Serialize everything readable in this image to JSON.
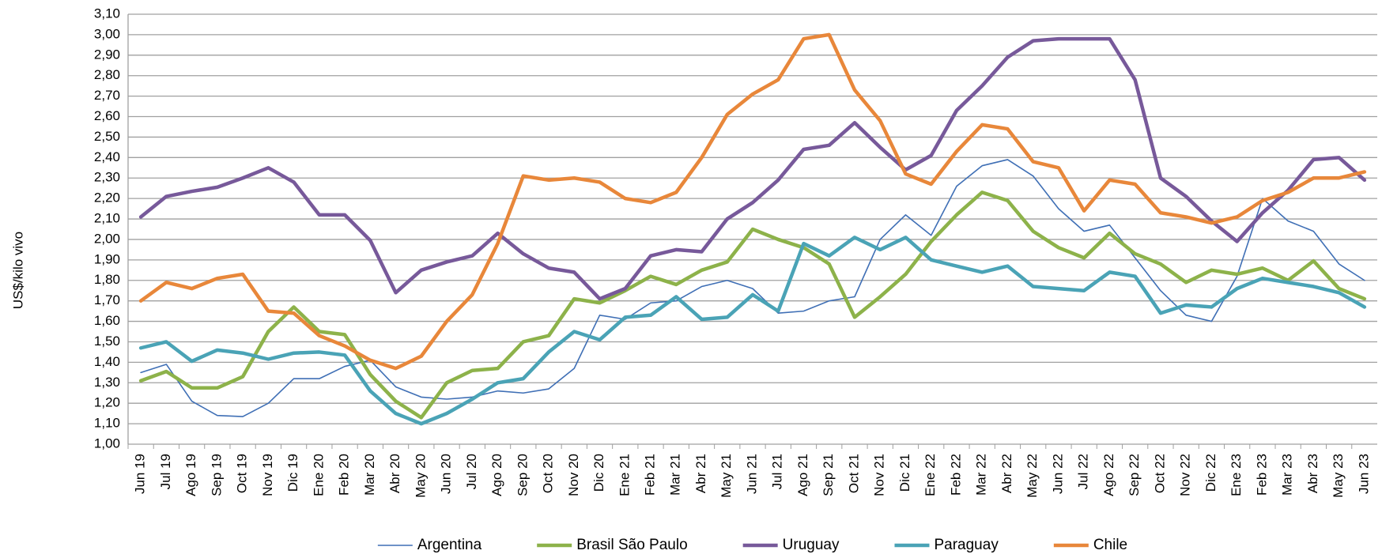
{
  "chart_data": {
    "type": "line",
    "y_label": "US$/kilo vivo",
    "categories": [
      "Jun 19",
      "Jul 19",
      "Ago 19",
      "Sep 19",
      "Oct 19",
      "Nov 19",
      "Dic 19",
      "Ene 20",
      "Feb 20",
      "Mar 20",
      "Abr 20",
      "May 20",
      "Jun 20",
      "Jul 20",
      "Ago 20",
      "Sep 20",
      "Oct 20",
      "Nov 20",
      "Dic 20",
      "Ene 21",
      "Feb 21",
      "Mar 21",
      "Abr 21",
      "May 21",
      "Jun 21",
      "Jul 21",
      "Ago 21",
      "Sep 21",
      "Oct 21",
      "Nov 21",
      "Dic 21",
      "Ene 22",
      "Feb 22",
      "Mar 22",
      "Abr 22",
      "May 22",
      "Jun 22",
      "Jul 22",
      "Ago 22",
      "Sep 22",
      "Oct 22",
      "Nov 22",
      "Dic 22",
      "Ene 23",
      "Feb 23",
      "Mar 23",
      "Abr 23",
      "May 23",
      "Jun 23"
    ],
    "series": [
      {
        "name": "Argentina",
        "color": "#3f6fb5",
        "line_width": 1.6,
        "values": [
          1.35,
          1.39,
          1.21,
          1.14,
          1.135,
          1.2,
          1.32,
          1.32,
          1.38,
          1.41,
          1.28,
          1.23,
          1.22,
          1.23,
          1.26,
          1.25,
          1.27,
          1.37,
          1.63,
          1.61,
          1.69,
          1.7,
          1.77,
          1.8,
          1.76,
          1.64,
          1.65,
          1.7,
          1.72,
          2.0,
          2.12,
          2.02,
          2.26,
          2.36,
          2.39,
          2.31,
          2.15,
          2.04,
          2.07,
          1.91,
          1.75,
          1.63,
          1.6,
          1.82,
          2.2,
          2.09,
          2.04,
          1.88,
          1.8
        ]
      },
      {
        "name": "Brasil São Paulo",
        "color": "#8db24a",
        "line_width": 4.5,
        "values": [
          1.31,
          1.355,
          1.275,
          1.275,
          1.33,
          1.55,
          1.67,
          1.55,
          1.535,
          1.34,
          1.21,
          1.13,
          1.3,
          1.36,
          1.37,
          1.5,
          1.53,
          1.71,
          1.69,
          1.75,
          1.82,
          1.78,
          1.85,
          1.89,
          2.05,
          2.0,
          1.96,
          1.88,
          1.62,
          1.72,
          1.83,
          1.99,
          2.12,
          2.23,
          2.19,
          2.04,
          1.96,
          1.91,
          2.03,
          1.93,
          1.88,
          1.79,
          1.85,
          1.83,
          1.86,
          1.8,
          1.895,
          1.76,
          1.71
        ]
      },
      {
        "name": "Uruguay",
        "color": "#77599a",
        "line_width": 4.5,
        "values": [
          2.11,
          2.21,
          2.235,
          2.255,
          2.3,
          2.35,
          2.28,
          2.12,
          2.12,
          1.995,
          1.74,
          1.85,
          1.89,
          1.92,
          2.03,
          1.93,
          1.86,
          1.84,
          1.71,
          1.76,
          1.92,
          1.95,
          1.94,
          2.1,
          2.18,
          2.29,
          2.44,
          2.46,
          2.57,
          2.45,
          2.34,
          2.41,
          2.63,
          2.75,
          2.89,
          2.97,
          2.98,
          2.98,
          2.98,
          2.78,
          2.3,
          2.21,
          2.09,
          1.99,
          2.13,
          2.24,
          2.39,
          2.4,
          2.29
        ]
      },
      {
        "name": "Paraguay",
        "color": "#4aa3b6",
        "line_width": 4.5,
        "values": [
          1.47,
          1.5,
          1.405,
          1.46,
          1.445,
          1.415,
          1.445,
          1.45,
          1.435,
          1.26,
          1.15,
          1.1,
          1.15,
          1.22,
          1.3,
          1.32,
          1.45,
          1.55,
          1.51,
          1.62,
          1.63,
          1.72,
          1.61,
          1.62,
          1.73,
          1.65,
          1.98,
          1.92,
          2.01,
          1.95,
          2.01,
          1.9,
          1.87,
          1.84,
          1.87,
          1.77,
          1.76,
          1.75,
          1.84,
          1.82,
          1.64,
          1.68,
          1.67,
          1.76,
          1.81,
          1.79,
          1.77,
          1.74,
          1.67
        ]
      },
      {
        "name": "Chile",
        "color": "#e8873a",
        "line_width": 4.5,
        "values": [
          1.7,
          1.79,
          1.76,
          1.81,
          1.83,
          1.65,
          1.64,
          1.53,
          1.48,
          1.41,
          1.37,
          1.43,
          1.6,
          1.73,
          1.98,
          2.31,
          2.29,
          2.3,
          2.28,
          2.2,
          2.18,
          2.23,
          2.4,
          2.61,
          2.71,
          2.78,
          2.98,
          3.0,
          2.73,
          2.58,
          2.32,
          2.27,
          2.43,
          2.56,
          2.54,
          2.38,
          2.35,
          2.14,
          2.29,
          2.27,
          2.13,
          2.11,
          2.08,
          2.11,
          2.19,
          2.23,
          2.3,
          2.3,
          2.33
        ]
      }
    ],
    "ylim": [
      1.0,
      3.1
    ],
    "yticks": [
      {
        "value": 1.0,
        "label": "1,00"
      },
      {
        "value": 1.1,
        "label": "1,10"
      },
      {
        "value": 1.2,
        "label": "1,20"
      },
      {
        "value": 1.3,
        "label": "1,30"
      },
      {
        "value": 1.4,
        "label": "1,40"
      },
      {
        "value": 1.5,
        "label": "1,50"
      },
      {
        "value": 1.6,
        "label": "1,60"
      },
      {
        "value": 1.7,
        "label": "1,70"
      },
      {
        "value": 1.8,
        "label": "1,80"
      },
      {
        "value": 1.9,
        "label": "1,90"
      },
      {
        "value": 2.0,
        "label": "2,00"
      },
      {
        "value": 2.1,
        "label": "2,10"
      },
      {
        "value": 2.2,
        "label": "2,20"
      },
      {
        "value": 2.3,
        "label": "2,30"
      },
      {
        "value": 2.4,
        "label": "2,40"
      },
      {
        "value": 2.5,
        "label": "2,50"
      },
      {
        "value": 2.6,
        "label": "2,60"
      },
      {
        "value": 2.7,
        "label": "2,70"
      },
      {
        "value": 2.8,
        "label": "2,80"
      },
      {
        "value": 2.9,
        "label": "2,90"
      },
      {
        "value": 3.0,
        "label": "3,00"
      },
      {
        "value": 3.1,
        "label": "3,10"
      }
    ],
    "grid": true,
    "legend": "bottom"
  }
}
